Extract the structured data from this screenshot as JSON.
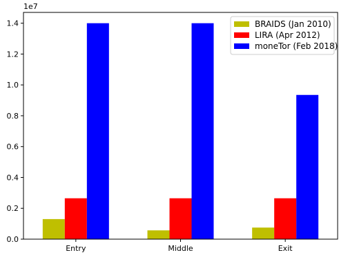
{
  "chart_data": {
    "type": "bar",
    "categories": [
      "Entry",
      "Middle",
      "Exit"
    ],
    "series": [
      {
        "name": "BRAIDS (Jan 2010)",
        "color": "#bfbf00",
        "values": [
          1300000,
          570000,
          750000
        ]
      },
      {
        "name": "LIRA (Apr 2012)",
        "color": "#ff0000",
        "values": [
          2650000,
          2650000,
          2650000
        ]
      },
      {
        "name": "moneTor (Feb 2018)",
        "color": "#0000ff",
        "values": [
          14000000,
          14000000,
          9350000
        ]
      }
    ],
    "ylim": [
      0,
      14700000
    ],
    "yticks": [
      0,
      2000000,
      4000000,
      6000000,
      8000000,
      10000000,
      12000000,
      14000000
    ],
    "ytick_labels": [
      "0.0",
      "0.2",
      "0.4",
      "0.6",
      "0.8",
      "1.0",
      "1.2",
      "1.4"
    ],
    "y_offset_label": "1e7",
    "legend": "top-right",
    "grid": false
  }
}
